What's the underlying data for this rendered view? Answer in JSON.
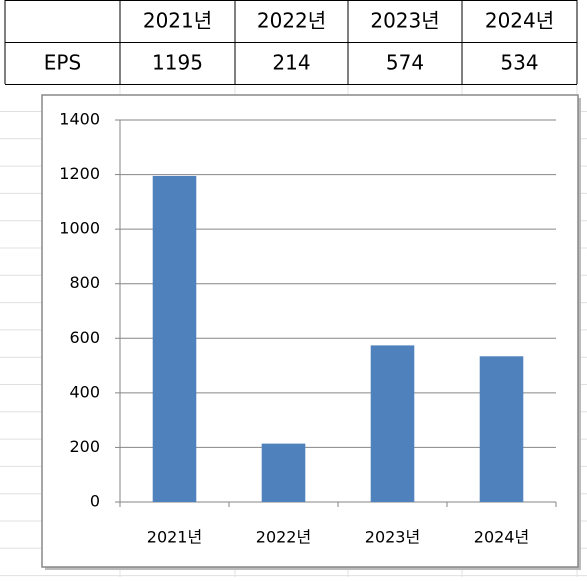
{
  "table": {
    "columns": [
      "2021년",
      "2022년",
      "2023년",
      "2024년"
    ],
    "rows": [
      [
        "EPS",
        1195,
        214,
        574,
        534
      ]
    ]
  },
  "chart_data": {
    "type": "bar",
    "categories": [
      "2021년",
      "2022년",
      "2023년",
      "2024년"
    ],
    "values": [
      1195,
      214,
      574,
      534
    ],
    "color": "#4f81bd",
    "ylim": [
      0,
      1400
    ],
    "yticks": [
      0,
      200,
      400,
      600,
      800,
      1000,
      1200,
      1400
    ],
    "grid": true
  }
}
